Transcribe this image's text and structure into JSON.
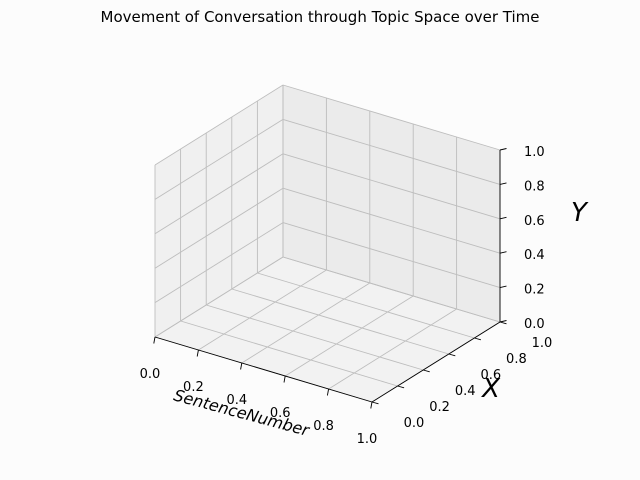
{
  "chart_data": {
    "type": "line",
    "projection": "3d",
    "title": "Movement of Conversation through Topic Space over Time",
    "xlabel": "SentenceNumber",
    "ylabel": "X",
    "zlabel": "Y",
    "xlim": [
      0,
      1
    ],
    "ylim": [
      0,
      1
    ],
    "zlim": [
      0,
      1
    ],
    "x_ticks": [
      "0.0",
      "0.2",
      "0.4",
      "0.6",
      "0.8",
      "1.0"
    ],
    "y_ticks": [
      "0.0",
      "0.2",
      "0.4",
      "0.6",
      "0.8",
      "1.0"
    ],
    "z_ticks": [
      "0.0",
      "0.2",
      "0.4",
      "0.6",
      "0.8",
      "1.0"
    ],
    "grid": true,
    "series": []
  }
}
